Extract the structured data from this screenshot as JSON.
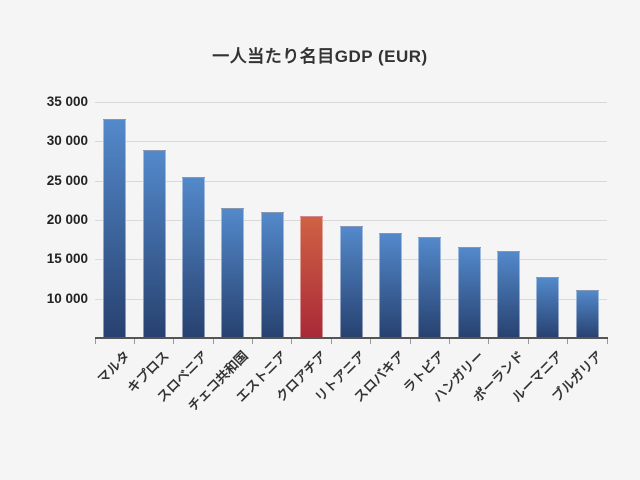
{
  "chart_data": {
    "type": "bar",
    "title": "一人当たり名目GDP (EUR)",
    "categories": [
      "マルタ",
      "キプロス",
      "スロベニア",
      "チェコ共和国",
      "エストニア",
      "クロアチア",
      "リトアニア",
      "スロバキア",
      "ラトビア",
      "ハンガリー",
      "ポーランド",
      "ルーマニア",
      "ブルガリア"
    ],
    "values": [
      32800,
      28900,
      25500,
      21500,
      21000,
      20500,
      19300,
      18400,
      17800,
      16600,
      16100,
      12800,
      11100
    ],
    "highlight_index": 5,
    "highlighted_category": "クロアチア",
    "ylim": [
      5000,
      35000
    ],
    "yticks": [
      {
        "value": 35000,
        "label": "35 000"
      },
      {
        "value": 30000,
        "label": "30 000"
      },
      {
        "value": 25000,
        "label": "25 000"
      },
      {
        "value": 20000,
        "label": "20 000"
      },
      {
        "value": 15000,
        "label": "15 000"
      },
      {
        "value": 10000,
        "label": "10 000"
      }
    ],
    "xlabel": "",
    "ylabel": "",
    "grid": "horizontal-only",
    "legend": "none",
    "colors": {
      "bar_gradient_top": "#5389cb",
      "bar_gradient_bottom": "#27416f",
      "highlight_gradient_top": "#cf6245",
      "highlight_gradient_bottom": "#a92937",
      "background": "#f5f5f6",
      "gridline": "#d9d9d9",
      "axis_line": "#555555",
      "tick_mark": "#999999",
      "text": "#333333"
    }
  }
}
